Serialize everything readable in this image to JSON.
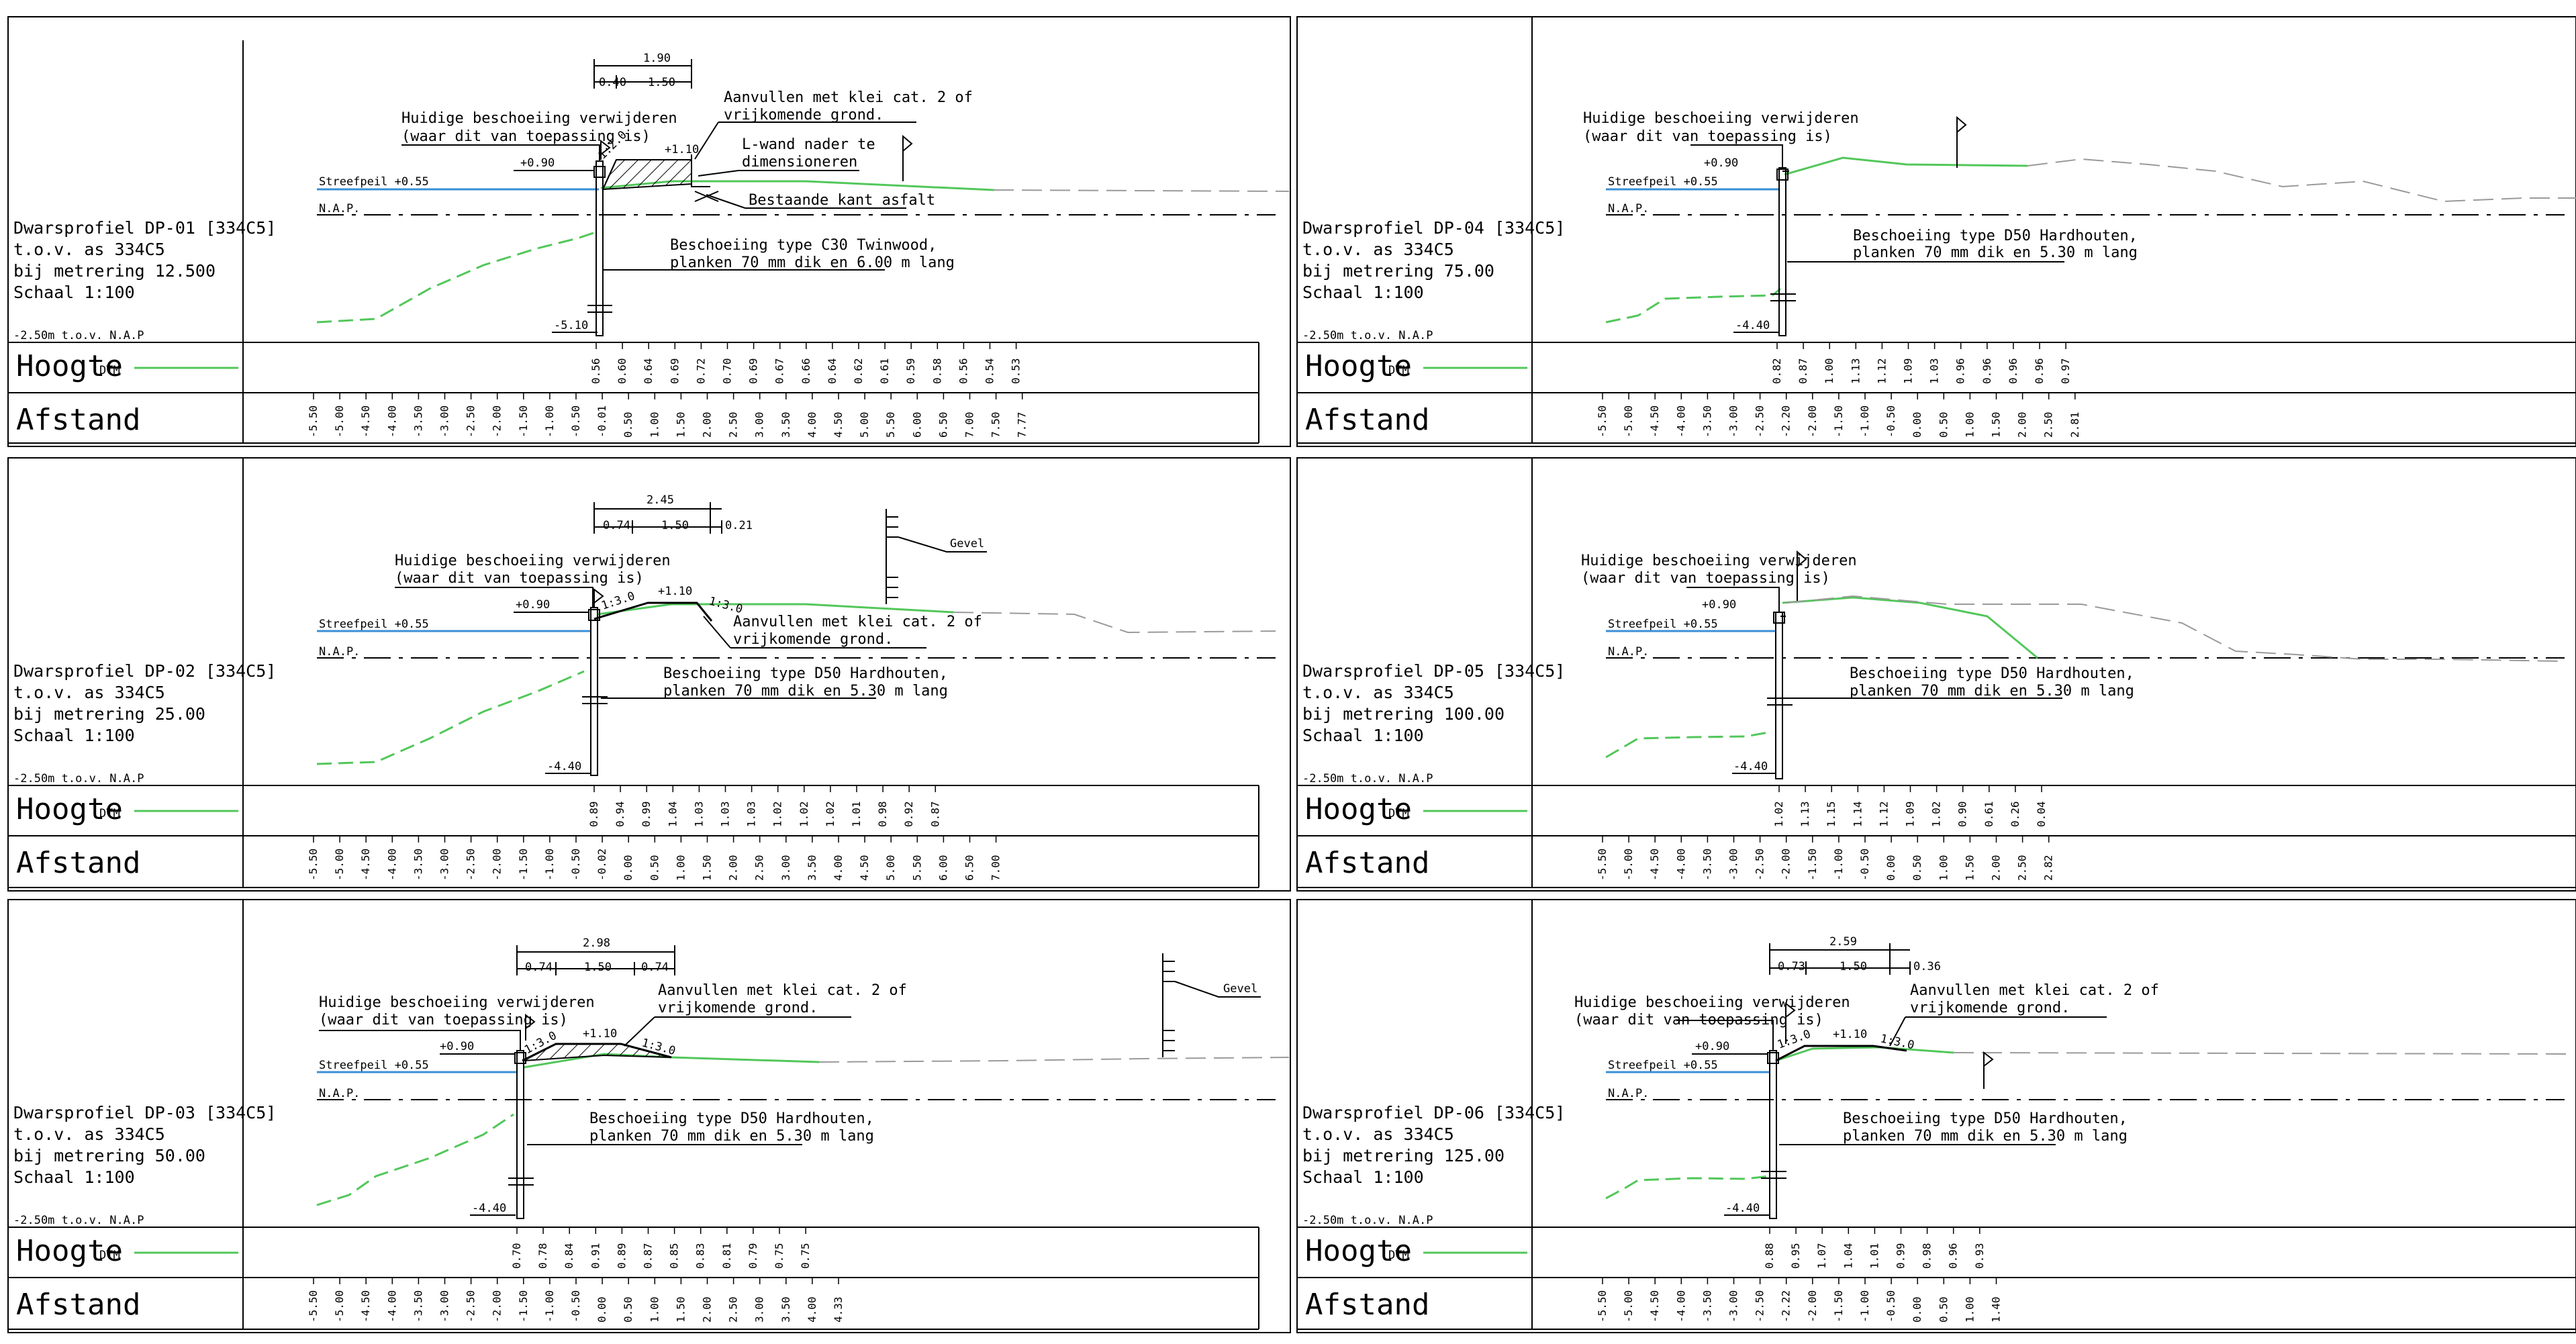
{
  "labels": {
    "hoogte": "Hoogte",
    "dtm": "DTM",
    "afstand": "Afstand",
    "ref": "-2.50m t.o.v. N.A.P",
    "nap": "N.A.P.",
    "streefpeil": "Streefpeil +0.55",
    "verwijderen_1": "Huidige beschoeiing verwijderen",
    "verwijderen_2": "(waar dit van toepassing is)",
    "plus090": "+0.90",
    "aanvullen_1": "Aanvullen met klei cat. 2 of",
    "aanvullen_2": "vrijkomende grond.",
    "gevel": "Gevel"
  },
  "colors": {
    "dtm": "#52c75a",
    "existing": "#9a9a9a",
    "water": "#3a8fd6",
    "ink": "#000000"
  },
  "panels": [
    {
      "id": "dp01",
      "info": [
        "Dwarsprofiel DP-01 [334C5]",
        "t.o.v. as 334C5",
        "bij metrering 12.500",
        "Schaal 1:100"
      ],
      "hoogte": [
        "0.56",
        "0.60",
        "0.64",
        "0.69",
        "0.72",
        "0.70",
        "0.69",
        "0.67",
        "0.66",
        "0.64",
        "0.62",
        "0.61",
        "0.59",
        "0.58",
        "0.56",
        "0.54",
        "0.53"
      ],
      "afstand": [
        "-5.50",
        "-5.00",
        "-4.50",
        "-4.00",
        "-3.50",
        "-3.00",
        "-2.50",
        "-2.00",
        "-1.50",
        "-1.00",
        "-0.50",
        "-0.01",
        "0.50",
        "1.00",
        "1.50",
        "2.00",
        "2.50",
        "3.00",
        "3.50",
        "4.00",
        "4.50",
        "5.00",
        "5.50",
        "6.00",
        "6.50",
        "7.00",
        "7.50",
        "7.77"
      ],
      "dims": {
        "total": "1.90",
        "a": "0.40",
        "b": "1.50"
      },
      "texts": {
        "crest": "+1.10",
        "slope": "1:2.0",
        "depth": "-5.10",
        "lwand_1": "L-wand nader te",
        "lwand_2": "dimensioneren",
        "asfalt": "Bestaande kant asfalt",
        "besch_1": "Beschoeiing type C30 Twinwood,",
        "besch_2": "planken 70 mm dik en 6.00 m lang"
      }
    },
    {
      "id": "dp04",
      "info": [
        "Dwarsprofiel DP-04 [334C5]",
        "t.o.v. as 334C5",
        "bij metrering 75.00",
        "Schaal 1:100"
      ],
      "hoogte": [
        "0.82",
        "0.87",
        "1.00",
        "1.13",
        "1.12",
        "1.09",
        "1.03",
        "0.96",
        "0.96",
        "0.96",
        "0.96",
        "0.97"
      ],
      "afstand": [
        "-5.50",
        "-5.00",
        "-4.50",
        "-4.00",
        "-3.50",
        "-3.00",
        "-2.50",
        "-2.20",
        "-2.00",
        "-1.50",
        "-1.00",
        "-0.50",
        "0.00",
        "0.50",
        "1.00",
        "1.50",
        "2.00",
        "2.50",
        "2.81"
      ],
      "texts": {
        "depth": "-4.40",
        "besch_1": "Beschoeiing type D50 Hardhouten,",
        "besch_2": "planken 70 mm dik en 5.30 m lang"
      }
    },
    {
      "id": "dp02",
      "info": [
        "Dwarsprofiel DP-02 [334C5]",
        "t.o.v. as 334C5",
        "bij metrering 25.00",
        "Schaal 1:100"
      ],
      "hoogte": [
        "0.89",
        "0.94",
        "0.99",
        "1.04",
        "1.03",
        "1.03",
        "1.03",
        "1.02",
        "1.02",
        "1.02",
        "1.01",
        "0.98",
        "0.92",
        "0.87"
      ],
      "afstand": [
        "-5.50",
        "-5.00",
        "-4.50",
        "-4.00",
        "-3.50",
        "-3.00",
        "-2.50",
        "-2.00",
        "-1.50",
        "-1.00",
        "-0.50",
        "-0.02",
        "0.00",
        "0.50",
        "1.00",
        "1.50",
        "2.00",
        "2.50",
        "3.00",
        "3.50",
        "4.00",
        "4.50",
        "5.00",
        "5.50",
        "6.00",
        "6.50",
        "7.00"
      ],
      "dims": {
        "total": "2.45",
        "a": "0.74",
        "b": "1.50",
        "c": "0.21"
      },
      "texts": {
        "crest": "+1.10",
        "slope1": "1:3.0",
        "slope2": "1:3.0",
        "depth": "-4.40",
        "besch_1": "Beschoeiing type D50 Hardhouten,",
        "besch_2": "planken 70 mm dik en 5.30 m lang"
      }
    },
    {
      "id": "dp05",
      "info": [
        "Dwarsprofiel DP-05 [334C5]",
        "t.o.v. as 334C5",
        "bij metrering 100.00",
        "Schaal 1:100"
      ],
      "hoogte": [
        "1.02",
        "1.13",
        "1.15",
        "1.14",
        "1.12",
        "1.09",
        "1.02",
        "0.90",
        "0.61",
        "0.26",
        "0.04"
      ],
      "afstand": [
        "-5.50",
        "-5.00",
        "-4.50",
        "-4.00",
        "-3.50",
        "-3.00",
        "-2.50",
        "-2.00",
        "-1.50",
        "-1.00",
        "-0.50",
        "0.00",
        "0.50",
        "1.00",
        "1.50",
        "2.00",
        "2.50",
        "2.82"
      ],
      "texts": {
        "depth": "-4.40",
        "besch_1": "Beschoeiing type D50 Hardhouten,",
        "besch_2": "planken 70 mm dik en 5.30 m lang"
      }
    },
    {
      "id": "dp03",
      "info": [
        "Dwarsprofiel DP-03 [334C5]",
        "t.o.v. as 334C5",
        "bij metrering 50.00",
        "Schaal 1:100"
      ],
      "hoogte": [
        "0.70",
        "0.78",
        "0.84",
        "0.91",
        "0.89",
        "0.87",
        "0.85",
        "0.83",
        "0.81",
        "0.79",
        "0.75",
        "0.75"
      ],
      "afstand": [
        "-5.50",
        "-5.00",
        "-4.50",
        "-4.00",
        "-3.50",
        "-3.00",
        "-2.50",
        "-2.00",
        "-1.50",
        "-1.00",
        "-0.50",
        "0.00",
        "0.50",
        "1.00",
        "1.50",
        "2.00",
        "2.50",
        "3.00",
        "3.50",
        "4.00",
        "4.33"
      ],
      "dims": {
        "total": "2.98",
        "a": "0.74",
        "b": "1.50",
        "c": "0.74"
      },
      "texts": {
        "crest": "+1.10",
        "slope1": "1:3.0",
        "slope2": "1:3.0",
        "depth": "-4.40",
        "besch_1": "Beschoeiing type D50 Hardhouten,",
        "besch_2": "planken 70 mm dik en 5.30 m lang"
      }
    },
    {
      "id": "dp06",
      "info": [
        "Dwarsprofiel DP-06 [334C5]",
        "t.o.v. as 334C5",
        "bij metrering 125.00",
        "Schaal 1:100"
      ],
      "hoogte": [
        "0.88",
        "0.95",
        "1.07",
        "1.04",
        "1.01",
        "0.99",
        "0.98",
        "0.96",
        "0.93"
      ],
      "afstand": [
        "-5.50",
        "-5.00",
        "-4.50",
        "-4.00",
        "-3.50",
        "-3.00",
        "-2.50",
        "-2.22",
        "-2.00",
        "-1.50",
        "-1.00",
        "-0.50",
        "0.00",
        "0.50",
        "1.00",
        "1.40"
      ],
      "dims": {
        "total": "2.59",
        "a": "0.73",
        "b": "1.50",
        "c": "0.36"
      },
      "texts": {
        "crest": "+1.10",
        "slope1": "1:3.0",
        "slope2": "1:3.0",
        "depth": "-4.40",
        "besch_1": "Beschoeiing type D50 Hardhouten,",
        "besch_2": "planken 70 mm dik en 5.30 m lang"
      }
    }
  ]
}
